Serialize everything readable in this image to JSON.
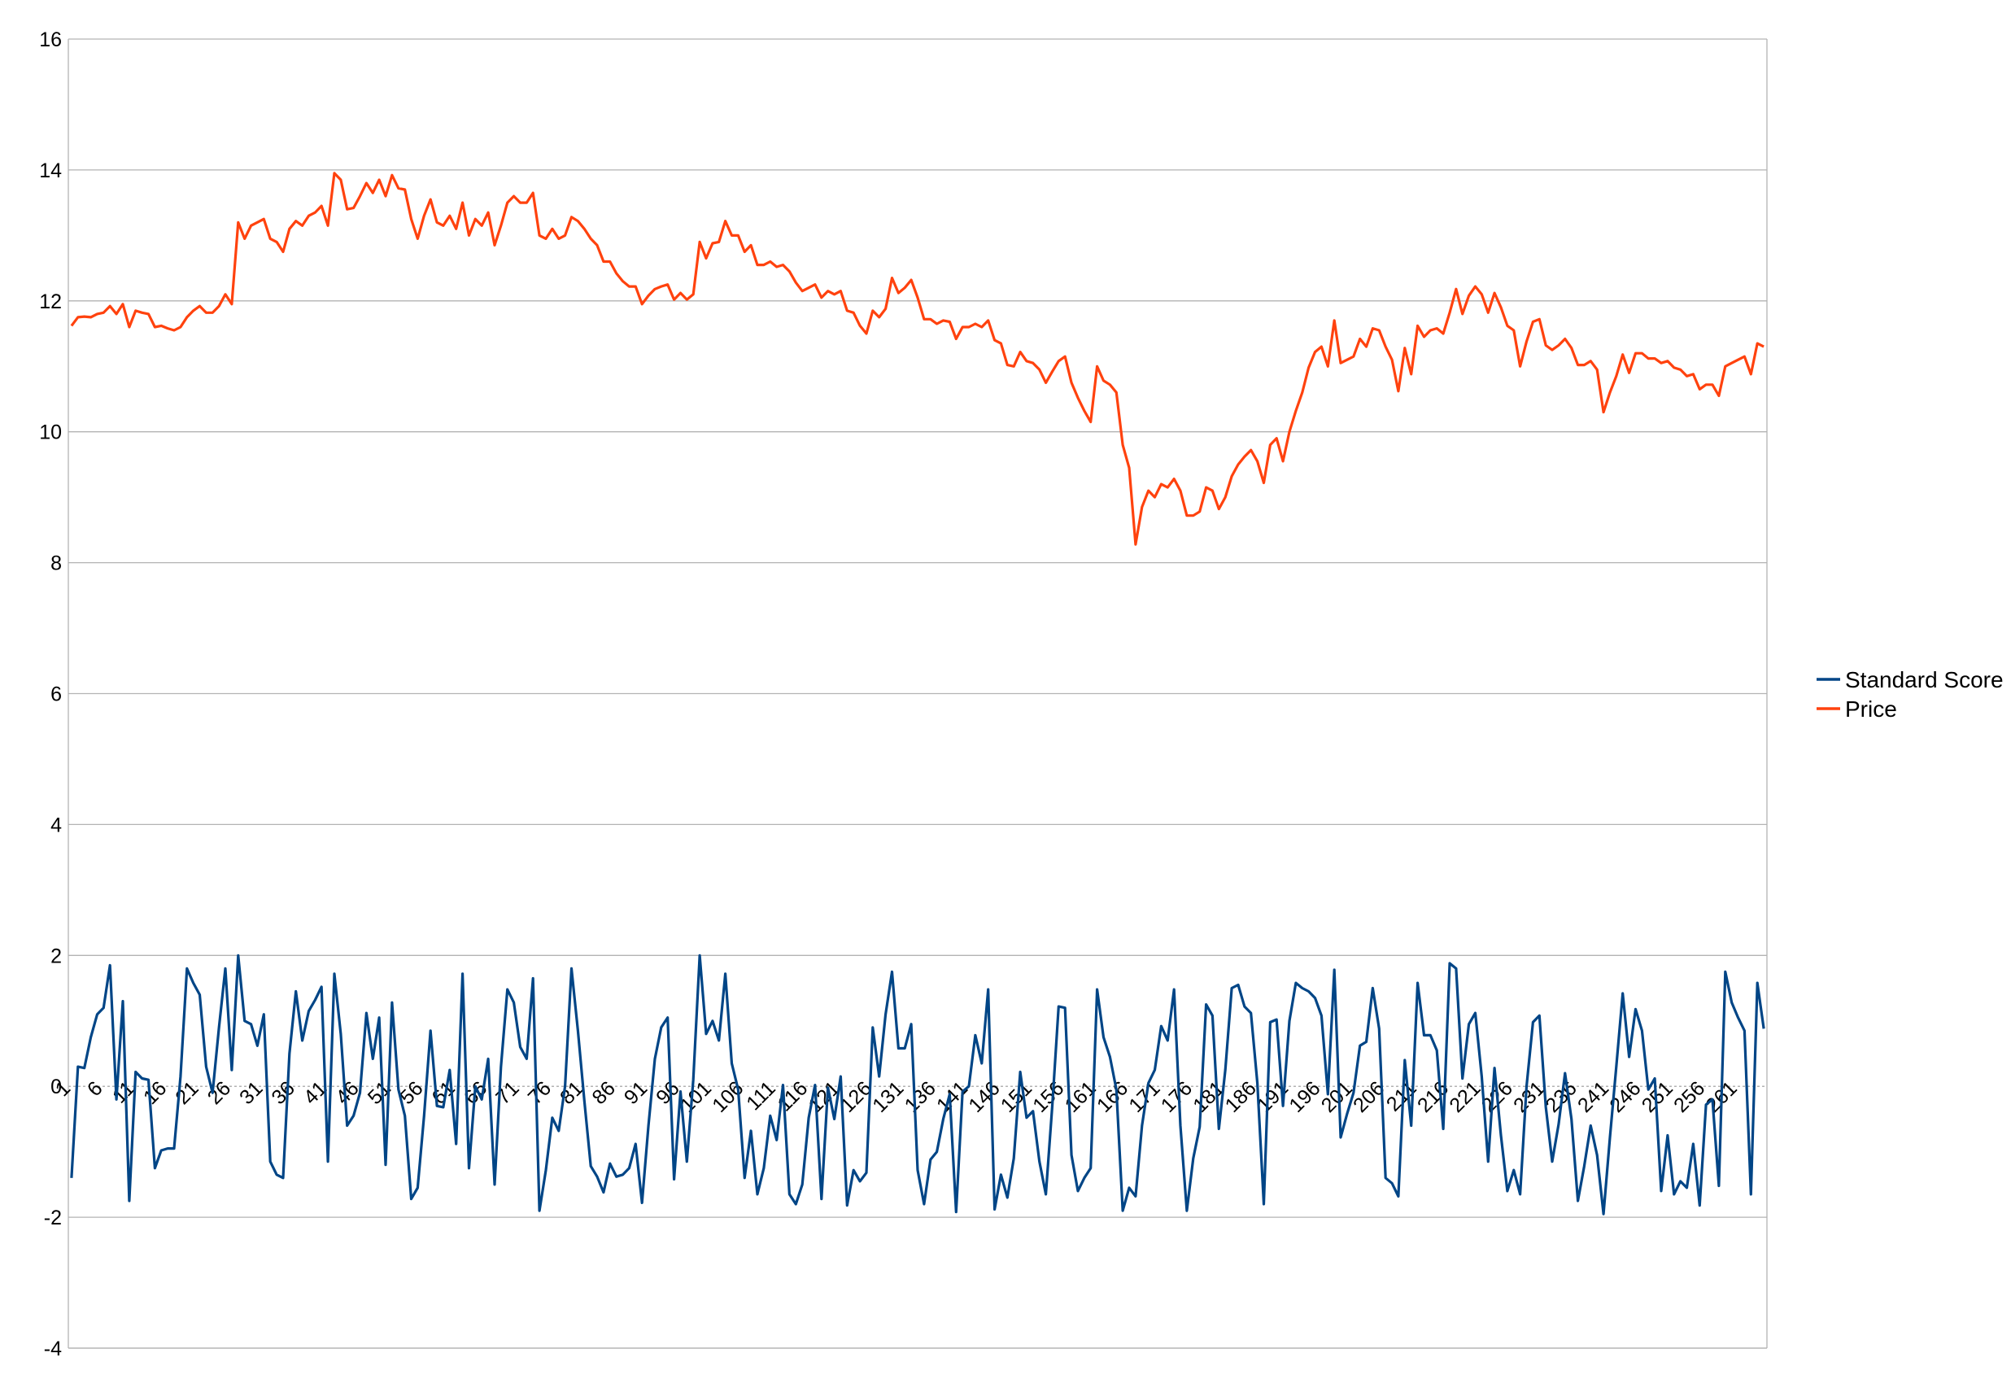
{
  "colors": {
    "standard_score": "#004586",
    "price": "#ff420e",
    "grid": "#b3b3b3",
    "zero_line": "#b3b3b3"
  },
  "chart_data": {
    "type": "line",
    "title": "",
    "xlabel": "",
    "ylabel": "",
    "ylim": [
      -4,
      16
    ],
    "yticks": [
      -4,
      -2,
      0,
      2,
      4,
      6,
      8,
      10,
      12,
      14,
      16
    ],
    "x_count": 265,
    "x_tick_step": 5,
    "x_tick_labels": [
      "1",
      "6",
      "11",
      "16",
      "21",
      "26",
      "31",
      "36",
      "41",
      "46",
      "51",
      "56",
      "61",
      "66",
      "71",
      "76",
      "81",
      "86",
      "91",
      "96",
      "101",
      "106",
      "111",
      "116",
      "121",
      "126",
      "131",
      "136",
      "141",
      "146",
      "151",
      "156",
      "161",
      "166",
      "171",
      "176",
      "181",
      "186",
      "191",
      "196",
      "201",
      "206",
      "211",
      "216",
      "221",
      "226",
      "231",
      "236",
      "241",
      "246",
      "251",
      "256",
      "261"
    ],
    "grid": true,
    "legend_position": "right",
    "series": [
      {
        "name": "Standard Score",
        "values": [
          -1.4,
          0.3,
          0.28,
          0.75,
          1.1,
          1.2,
          1.85,
          -0.2,
          1.3,
          -1.75,
          0.22,
          0.12,
          0.1,
          -1.25,
          -0.98,
          -0.95,
          -0.95,
          0.15,
          1.8,
          1.58,
          1.4,
          0.3,
          -0.1,
          0.9,
          1.8,
          0.25,
          2.0,
          1.0,
          0.95,
          0.62,
          1.1,
          -1.15,
          -1.35,
          -1.4,
          0.5,
          1.45,
          0.7,
          1.15,
          1.32,
          1.52,
          -1.15,
          1.72,
          0.8,
          -0.6,
          -0.45,
          -0.1,
          1.12,
          0.42,
          1.05,
          -1.2,
          1.28,
          -0.05,
          -0.45,
          -1.72,
          -1.55,
          -0.45,
          0.85,
          -0.3,
          -0.32,
          0.25,
          -0.88,
          1.72,
          -1.25,
          0.0,
          -0.2,
          0.42,
          -1.5,
          0.3,
          1.48,
          1.28,
          0.6,
          0.42,
          1.65,
          -1.9,
          -1.28,
          -0.48,
          -0.68,
          0.0,
          1.8,
          0.85,
          -0.22,
          -1.22,
          -1.38,
          -1.62,
          -1.18,
          -1.38,
          -1.35,
          -1.25,
          -0.88,
          -1.78,
          -0.6,
          0.42,
          0.9,
          1.05,
          -1.42,
          -0.08,
          -1.15,
          0.1,
          2.0,
          0.8,
          1.0,
          0.7,
          1.72,
          0.35,
          -0.05,
          -1.4,
          -0.68,
          -1.65,
          -1.25,
          -0.45,
          -0.82,
          0.02,
          -1.65,
          -1.8,
          -1.5,
          -0.48,
          0.02,
          -1.72,
          -0.02,
          -0.5,
          0.15,
          -1.82,
          -1.28,
          -1.45,
          -1.32,
          0.9,
          0.15,
          1.1,
          1.75,
          0.58,
          0.58,
          0.95,
          -1.28,
          -1.8,
          -1.12,
          -1.0,
          -0.5,
          -0.12,
          -1.92,
          -0.08,
          0.0,
          0.78,
          0.35,
          1.48,
          -1.88,
          -1.35,
          -1.7,
          -1.1,
          0.22,
          -0.48,
          -0.38,
          -1.15,
          -1.65,
          -0.3,
          1.22,
          1.2,
          -1.05,
          -1.6,
          -1.4,
          -1.25,
          1.48,
          0.75,
          0.45,
          -0.05,
          -1.9,
          -1.55,
          -1.68,
          -0.6,
          0.05,
          0.25,
          0.92,
          0.7,
          1.48,
          -0.6,
          -1.9,
          -1.1,
          -0.62,
          1.25,
          1.08,
          -0.65,
          0.25,
          1.5,
          1.55,
          1.22,
          1.12,
          0.05,
          -1.8,
          0.98,
          1.02,
          -0.3,
          1.0,
          1.58,
          1.5,
          1.45,
          1.35,
          1.08,
          -0.12,
          1.78,
          -0.78,
          -0.42,
          -0.1,
          0.62,
          0.68,
          1.5,
          0.88,
          -1.4,
          -1.48,
          -1.68,
          0.4,
          -0.6,
          1.58,
          0.78,
          0.78,
          0.55,
          -0.65,
          1.88,
          1.8,
          0.12,
          0.95,
          1.12,
          0.15,
          -1.15,
          0.28,
          -0.75,
          -1.6,
          -1.28,
          -1.65,
          0.0,
          0.98,
          1.08,
          -0.32,
          -1.15,
          -0.58,
          0.2,
          -0.5,
          -1.75,
          -1.22,
          -0.6,
          -1.05,
          -1.95,
          -0.78,
          0.3,
          1.42,
          0.45,
          1.18,
          0.85,
          -0.05,
          0.12,
          -1.6,
          -0.75,
          -1.65,
          -1.45,
          -1.55,
          -0.88,
          -1.82,
          -0.28,
          -0.2,
          -1.52,
          1.75,
          1.28,
          1.05,
          0.85,
          -1.65,
          1.58,
          0.88
        ]
      },
      {
        "name": "Price",
        "values": [
          11.62,
          11.75,
          11.76,
          11.75,
          11.8,
          11.82,
          11.92,
          11.8,
          11.95,
          11.6,
          11.85,
          11.82,
          11.8,
          11.6,
          11.62,
          11.58,
          11.55,
          11.6,
          11.75,
          11.85,
          11.92,
          11.82,
          11.82,
          11.92,
          12.1,
          11.95,
          13.2,
          12.95,
          13.15,
          13.2,
          13.25,
          12.95,
          12.9,
          12.75,
          13.1,
          13.22,
          13.15,
          13.3,
          13.35,
          13.45,
          13.15,
          13.95,
          13.85,
          13.4,
          13.42,
          13.6,
          13.8,
          13.65,
          13.85,
          13.6,
          13.92,
          13.72,
          13.7,
          13.25,
          12.95,
          13.3,
          13.55,
          13.2,
          13.15,
          13.3,
          13.1,
          13.5,
          13.0,
          13.25,
          13.15,
          13.35,
          12.85,
          13.15,
          13.5,
          13.6,
          13.5,
          13.5,
          13.65,
          13.0,
          12.95,
          13.1,
          12.95,
          13.0,
          13.28,
          13.22,
          13.1,
          12.95,
          12.85,
          12.6,
          12.6,
          12.42,
          12.3,
          12.22,
          12.22,
          11.95,
          12.08,
          12.18,
          12.22,
          12.25,
          12.02,
          12.12,
          12.02,
          12.1,
          12.9,
          12.65,
          12.88,
          12.9,
          13.22,
          13.0,
          13.0,
          12.75,
          12.85,
          12.55,
          12.55,
          12.6,
          12.52,
          12.55,
          12.45,
          12.28,
          12.15,
          12.2,
          12.25,
          12.05,
          12.15,
          12.1,
          12.15,
          11.85,
          11.82,
          11.62,
          11.5,
          11.85,
          11.75,
          11.88,
          12.35,
          12.12,
          12.2,
          12.32,
          12.05,
          11.72,
          11.72,
          11.65,
          11.7,
          11.68,
          11.42,
          11.6,
          11.6,
          11.65,
          11.6,
          11.7,
          11.4,
          11.35,
          11.02,
          11.0,
          11.22,
          11.08,
          11.05,
          10.95,
          10.75,
          10.92,
          11.08,
          11.15,
          10.75,
          10.52,
          10.32,
          10.15,
          11.0,
          10.78,
          10.72,
          10.6,
          9.8,
          9.45,
          8.28,
          8.85,
          9.1,
          9.0,
          9.2,
          9.15,
          9.28,
          9.1,
          8.72,
          8.72,
          8.78,
          9.15,
          9.1,
          8.82,
          9.0,
          9.32,
          9.5,
          9.62,
          9.72,
          9.55,
          9.22,
          9.8,
          9.9,
          9.55,
          10.0,
          10.32,
          10.6,
          10.98,
          11.22,
          11.3,
          11.0,
          11.7,
          11.05,
          11.1,
          11.15,
          11.42,
          11.3,
          11.58,
          11.55,
          11.3,
          11.1,
          10.62,
          11.28,
          10.88,
          11.62,
          11.45,
          11.55,
          11.58,
          11.5,
          11.82,
          12.18,
          11.8,
          12.08,
          12.22,
          12.1,
          11.82,
          12.12,
          11.9,
          11.62,
          11.55,
          11.0,
          11.38,
          11.68,
          11.72,
          11.32,
          11.25,
          11.32,
          11.42,
          11.28,
          11.02,
          11.02,
          11.08,
          10.95,
          10.3,
          10.6,
          10.85,
          11.18,
          10.9,
          11.2,
          11.2,
          11.12,
          11.12,
          11.05,
          11.08,
          10.98,
          10.95,
          10.85,
          10.88,
          10.65,
          10.72,
          10.72,
          10.55,
          11.0,
          11.05,
          11.1,
          11.15,
          10.88,
          11.35,
          11.3
        ]
      }
    ]
  }
}
